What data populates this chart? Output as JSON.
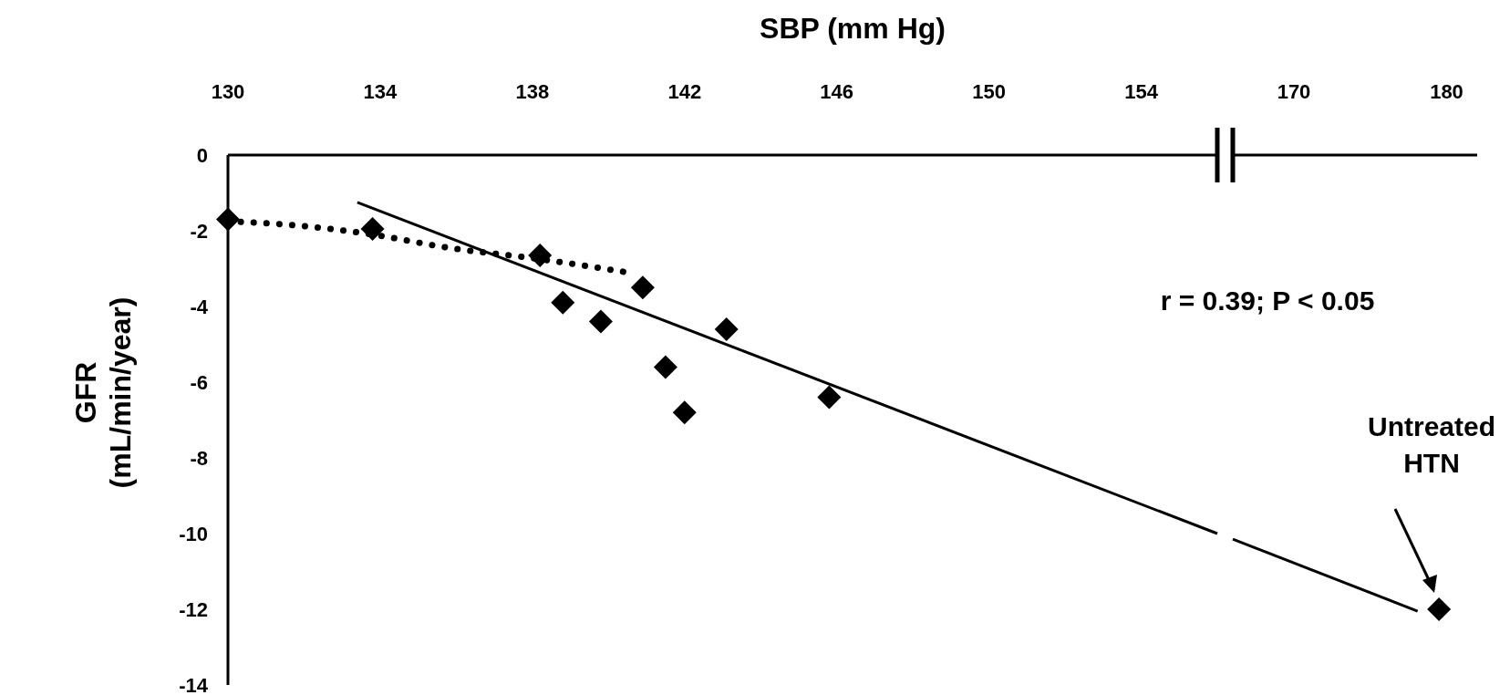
{
  "chart_data": [
    {
      "type": "scatter",
      "xlabel": "SBP (mm Hg)",
      "ylabel": "GFR (mL/min/year)",
      "xlim": [
        130,
        156
      ],
      "xticks": [
        130,
        134,
        138,
        142,
        146,
        150,
        154
      ],
      "ylim": [
        -14,
        0
      ],
      "yticks": [
        -14,
        -12,
        -10,
        -8,
        -6,
        -4,
        -2,
        0
      ],
      "series": [
        {
          "color": "#000000",
          "marker": "diamond",
          "x": [
            130,
            133.8,
            138.2,
            138.8,
            139.8,
            140.9,
            141.5,
            142.0,
            143.1,
            145.8
          ],
          "values": [
            -1.7,
            -1.95,
            -2.65,
            -3.9,
            -4.4,
            -3.5,
            -5.6,
            -6.8,
            -4.6,
            -6.4
          ]
        },
        {
          "type": "line",
          "color": "#000000",
          "line_style": "dotted",
          "x": [
            130,
            131.7,
            133.8,
            135.8,
            138.2,
            140.5
          ],
          "values": [
            -1.75,
            -1.85,
            -2.1,
            -2.45,
            -2.75,
            -3.1
          ]
        },
        {
          "type": "line",
          "color": "#000000",
          "line_style": "solid",
          "x": [
            133.4,
            156
          ],
          "values": [
            -1.25,
            -10.0
          ]
        }
      ],
      "annotations": [
        "r = 0.39; P < 0.05"
      ]
    },
    {
      "type": "scatter",
      "xlim": [
        166,
        182
      ],
      "xticks": [
        170,
        180
      ],
      "ylim": [
        -14,
        0
      ],
      "tick_labels": "x",
      "series": [
        {
          "color": "#000000",
          "marker": "diamond",
          "x": [
            179.5
          ],
          "values": [
            -12.0
          ]
        },
        {
          "type": "line",
          "color": "#000000",
          "line_style": "solid",
          "x": [
            166,
            178.1
          ],
          "values": [
            -10.15,
            -12.05
          ]
        }
      ],
      "annotations": [
        "Untreated HTN"
      ]
    }
  ]
}
